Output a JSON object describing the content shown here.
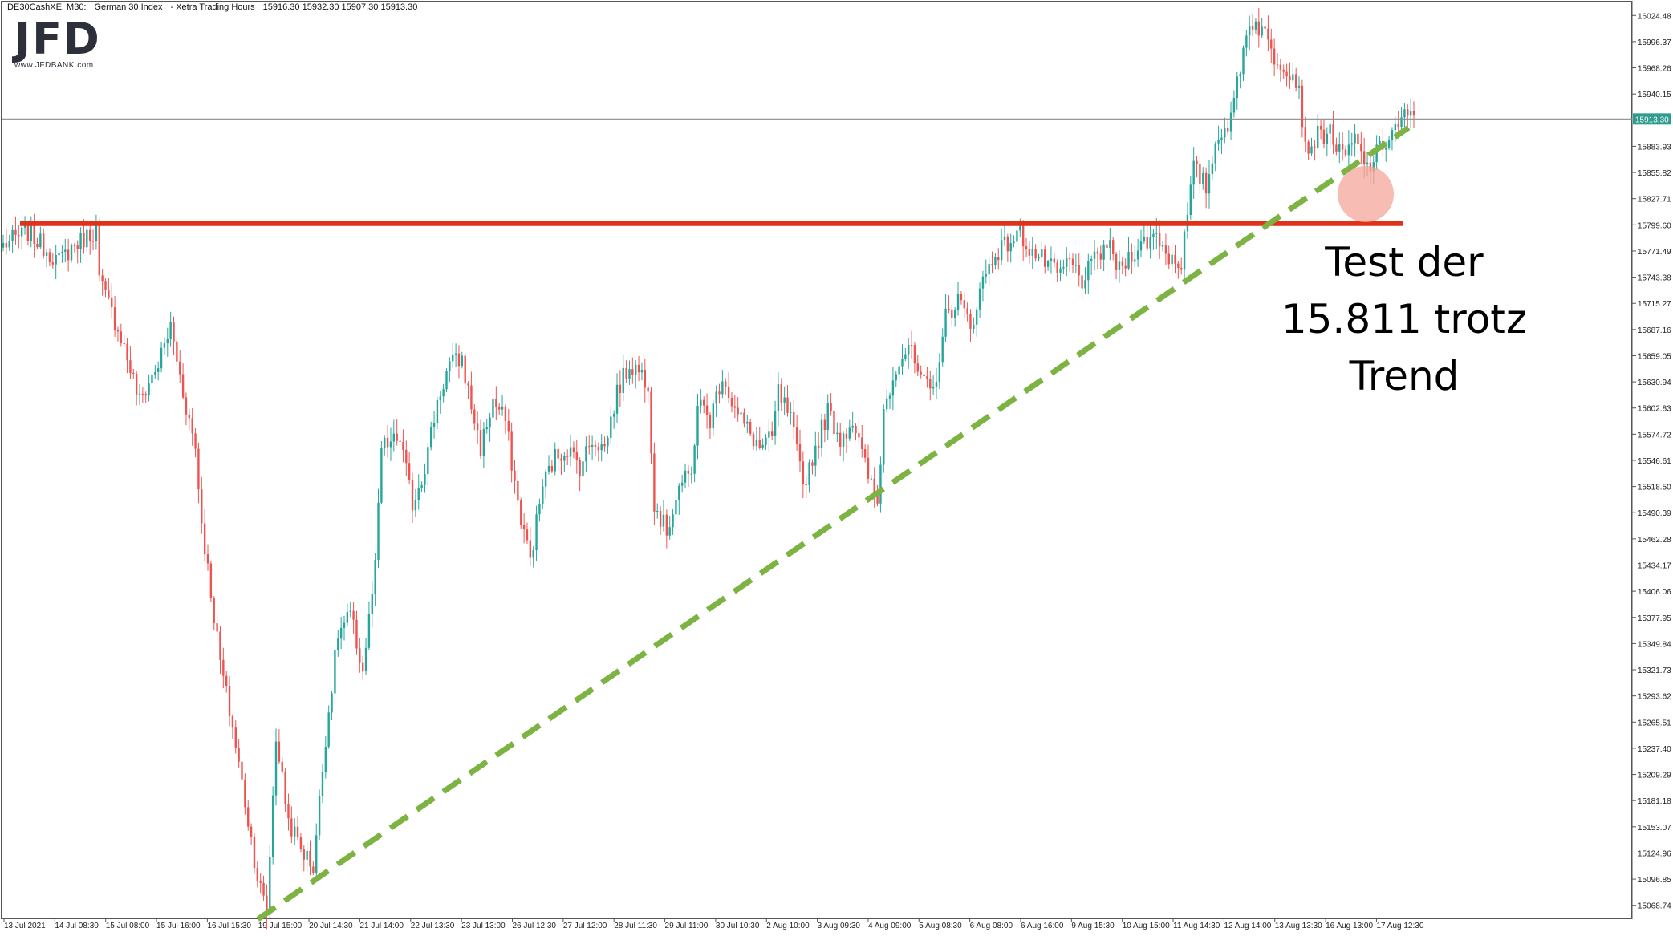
{
  "header": {
    "symbol": ".DE30CashXE, M30:",
    "name": "German 30 Index",
    "session": "- Xetra Trading Hours",
    "ohlc": "15916.30 15932.30 15907.30 15913.30"
  },
  "logo": {
    "text": "JFD",
    "url": "www.JFDBANK.com"
  },
  "annotation": {
    "lines": [
      "Test der",
      "15.811 trotz",
      "Trend"
    ]
  },
  "chart_data": {
    "type": "candlestick",
    "y_ticks": [
      "16024.48",
      "15996.37",
      "15968.26",
      "15940.15",
      "15883.93",
      "15855.82",
      "15827.71",
      "15799.60",
      "15771.49",
      "15743.38",
      "15715.27",
      "15687.16",
      "15659.05",
      "15630.94",
      "15602.83",
      "15574.72",
      "15546.61",
      "15518.50",
      "15490.39",
      "15462.28",
      "15434.17",
      "15406.06",
      "15377.95",
      "15349.84",
      "15321.73",
      "15293.62",
      "15265.51",
      "15237.40",
      "15209.29",
      "15181.18",
      "15153.07",
      "15124.96",
      "15096.85",
      "15068.74"
    ],
    "ylim": [
      15054.7,
      16038.5
    ],
    "x_ticks": [
      "13 Jul 2021",
      "14 Jul 08:30",
      "15 Jul 08:00",
      "15 Jul 16:00",
      "16 Jul 15:30",
      "19 Jul 15:00",
      "20 Jul 14:30",
      "21 Jul 14:00",
      "22 Jul 13:30",
      "23 Jul 13:00",
      "26 Jul 12:30",
      "27 Jul 12:00",
      "28 Jul 11:30",
      "29 Jul 11:00",
      "30 Jul 10:30",
      "2 Aug 10:00",
      "3 Aug 09:30",
      "4 Aug 09:00",
      "5 Aug 08:30",
      "6 Aug 08:00",
      "6 Aug 16:00",
      "9 Aug 15:30",
      "10 Aug 15:00",
      "11 Aug 14:30",
      "12 Aug 14:00",
      "13 Aug 13:30",
      "16 Aug 13:00",
      "17 Aug 12:30"
    ],
    "current_price": "15913.30",
    "current_price_value": 15913.3,
    "resistance_level": 15801,
    "trendline": {
      "from": [
        "19 Jul 15:00",
        15054
      ],
      "to": [
        "17 Aug 12:30",
        15904
      ],
      "to_index_extra": 40
    },
    "colors": {
      "bull": "#26a69a",
      "bear": "#ef5350",
      "resistance": "#e0311a",
      "trend": "#7cb342",
      "circle": "#f4a69a",
      "price_line": "#8a8a8a"
    },
    "anchors": [
      [
        0,
        15778
      ],
      [
        8,
        15792
      ],
      [
        18,
        15760
      ],
      [
        22,
        15775
      ],
      [
        30,
        15795
      ],
      [
        31,
        15740
      ],
      [
        38,
        15680
      ],
      [
        44,
        15610
      ],
      [
        50,
        15650
      ],
      [
        54,
        15690
      ],
      [
        58,
        15620
      ],
      [
        62,
        15560
      ],
      [
        64,
        15480
      ],
      [
        66,
        15430
      ],
      [
        70,
        15330
      ],
      [
        74,
        15260
      ],
      [
        78,
        15180
      ],
      [
        82,
        15100
      ],
      [
        85,
        15060
      ],
      [
        88,
        15250
      ],
      [
        92,
        15160
      ],
      [
        96,
        15130
      ],
      [
        100,
        15110
      ],
      [
        104,
        15250
      ],
      [
        108,
        15360
      ],
      [
        112,
        15380
      ],
      [
        116,
        15320
      ],
      [
        120,
        15430
      ],
      [
        122,
        15560
      ],
      [
        128,
        15570
      ],
      [
        132,
        15500
      ],
      [
        136,
        15540
      ],
      [
        140,
        15610
      ],
      [
        144,
        15650
      ],
      [
        148,
        15655
      ],
      [
        150,
        15620
      ],
      [
        154,
        15560
      ],
      [
        158,
        15610
      ],
      [
        162,
        15590
      ],
      [
        166,
        15500
      ],
      [
        170,
        15440
      ],
      [
        174,
        15520
      ],
      [
        178,
        15550
      ],
      [
        182,
        15560
      ],
      [
        186,
        15540
      ],
      [
        190,
        15570
      ],
      [
        194,
        15560
      ],
      [
        198,
        15620
      ],
      [
        202,
        15650
      ],
      [
        206,
        15640
      ],
      [
        208,
        15630
      ],
      [
        210,
        15500
      ],
      [
        214,
        15470
      ],
      [
        218,
        15520
      ],
      [
        222,
        15530
      ],
      [
        224,
        15610
      ],
      [
        228,
        15590
      ],
      [
        232,
        15640
      ],
      [
        236,
        15600
      ],
      [
        240,
        15580
      ],
      [
        244,
        15560
      ],
      [
        248,
        15570
      ],
      [
        250,
        15620
      ],
      [
        254,
        15590
      ],
      [
        258,
        15520
      ],
      [
        262,
        15560
      ],
      [
        266,
        15600
      ],
      [
        270,
        15570
      ],
      [
        274,
        15590
      ],
      [
        278,
        15540
      ],
      [
        282,
        15500
      ],
      [
        284,
        15600
      ],
      [
        288,
        15650
      ],
      [
        292,
        15670
      ],
      [
        296,
        15630
      ],
      [
        300,
        15620
      ],
      [
        304,
        15700
      ],
      [
        308,
        15720
      ],
      [
        312,
        15690
      ],
      [
        316,
        15740
      ],
      [
        320,
        15770
      ],
      [
        324,
        15780
      ],
      [
        328,
        15790
      ],
      [
        332,
        15770
      ],
      [
        336,
        15760
      ],
      [
        340,
        15745
      ],
      [
        344,
        15760
      ],
      [
        348,
        15740
      ],
      [
        352,
        15760
      ],
      [
        356,
        15780
      ],
      [
        360,
        15750
      ],
      [
        364,
        15770
      ],
      [
        368,
        15780
      ],
      [
        372,
        15790
      ],
      [
        376,
        15765
      ],
      [
        380,
        15760
      ],
      [
        384,
        15860
      ],
      [
        388,
        15840
      ],
      [
        392,
        15900
      ],
      [
        396,
        15910
      ],
      [
        398,
        15955
      ],
      [
        402,
        16020
      ],
      [
        406,
        16010
      ],
      [
        410,
        15980
      ],
      [
        414,
        15970
      ],
      [
        418,
        15950
      ],
      [
        420,
        15880
      ],
      [
        424,
        15895
      ],
      [
        428,
        15900
      ],
      [
        432,
        15870
      ],
      [
        436,
        15890
      ],
      [
        440,
        15860
      ],
      [
        444,
        15880
      ],
      [
        448,
        15900
      ],
      [
        452,
        15915
      ],
      [
        455,
        15913
      ]
    ]
  }
}
